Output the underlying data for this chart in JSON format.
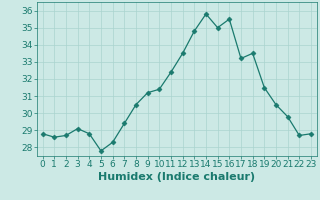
{
  "x": [
    0,
    1,
    2,
    3,
    4,
    5,
    6,
    7,
    8,
    9,
    10,
    11,
    12,
    13,
    14,
    15,
    16,
    17,
    18,
    19,
    20,
    21,
    22,
    23
  ],
  "y": [
    28.8,
    28.6,
    28.7,
    29.1,
    28.8,
    27.8,
    28.3,
    29.4,
    30.5,
    31.2,
    31.4,
    32.4,
    33.5,
    34.8,
    35.8,
    35.0,
    35.5,
    33.2,
    33.5,
    31.5,
    30.5,
    29.8,
    28.7,
    28.8
  ],
  "line_color": "#1a7a6e",
  "marker": "D",
  "marker_size": 2.5,
  "bg_color": "#cce9e5",
  "grid_color": "#aad4cf",
  "xlabel": "Humidex (Indice chaleur)",
  "ylim": [
    27.5,
    36.5
  ],
  "xlim": [
    -0.5,
    23.5
  ],
  "yticks": [
    28,
    29,
    30,
    31,
    32,
    33,
    34,
    35,
    36
  ],
  "xticks": [
    0,
    1,
    2,
    3,
    4,
    5,
    6,
    7,
    8,
    9,
    10,
    11,
    12,
    13,
    14,
    15,
    16,
    17,
    18,
    19,
    20,
    21,
    22,
    23
  ],
  "tick_fontsize": 6.5,
  "xlabel_fontsize": 8
}
